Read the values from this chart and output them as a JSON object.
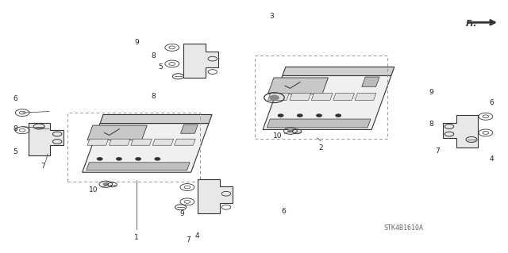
{
  "bg_color": "#ffffff",
  "line_color": "#333333",
  "diagram_color": "#444444",
  "label_color": "#222222",
  "fig_width": 6.4,
  "fig_height": 3.19,
  "watermark": "STK4B1610A",
  "fr_label": "Fr."
}
